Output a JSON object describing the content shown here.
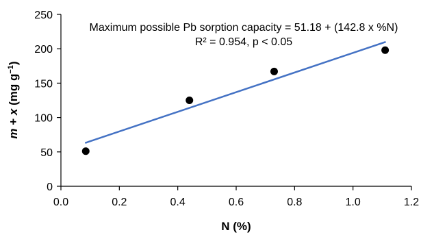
{
  "chart_data": {
    "type": "scatter",
    "xlabel": "N (%)",
    "ylabel_parts": [
      "m",
      " + ",
      "x",
      "  (mg g",
      "−1",
      ")"
    ],
    "xlim": [
      0,
      1.2
    ],
    "ylim": [
      0,
      250
    ],
    "x_ticks": [
      "0.0",
      "0.2",
      "0.4",
      "0.6",
      "0.8",
      "1.0",
      "1.2"
    ],
    "x_tick_values": [
      0,
      0.2,
      0.4,
      0.6,
      0.8,
      1.0,
      1.2
    ],
    "y_ticks": [
      "0",
      "50",
      "100",
      "150",
      "200",
      "250"
    ],
    "y_tick_values": [
      0,
      50,
      100,
      150,
      200,
      250
    ],
    "grid": false,
    "series": [
      {
        "type": "scatter",
        "marker": "filled-circle",
        "color": "#000000",
        "x": [
          0.085,
          0.44,
          0.73,
          1.11
        ],
        "y": [
          51,
          125,
          167,
          198
        ]
      }
    ],
    "trendline": {
      "color": "#4472C4",
      "intercept": 51.18,
      "slope": 142.8,
      "x_range": [
        0.085,
        1.11
      ]
    },
    "annotations": [
      "Maximum possible Pb sorption capacity  = 51.18 + (142.8 x %N)",
      "R² = 0.954, p < 0.05"
    ]
  }
}
